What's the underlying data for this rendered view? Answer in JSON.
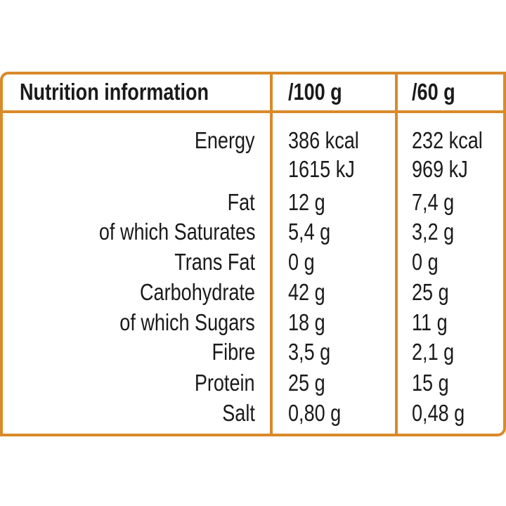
{
  "header": {
    "title": "Nutrition information",
    "col1": "/100 g",
    "col2": "/60 g"
  },
  "border_color": "#d98a2a",
  "rows": [
    {
      "label": "Energy",
      "per100": "386 kcal",
      "per60": "232 kcal"
    },
    {
      "label": "",
      "per100": "1615 kJ",
      "per60": "969 kJ"
    },
    {
      "label": "Fat",
      "per100": "12 g",
      "per60": "7,4 g"
    },
    {
      "label": "of which Saturates",
      "per100": "5,4 g",
      "per60": "3,2 g"
    },
    {
      "label": "Trans Fat",
      "per100": "0 g",
      "per60": "0 g"
    },
    {
      "label": "Carbohydrate",
      "per100": "42 g",
      "per60": "25 g"
    },
    {
      "label": "of which Sugars",
      "per100": "18 g",
      "per60": "11 g"
    },
    {
      "label": "Fibre",
      "per100": "3,5 g",
      "per60": "2,1 g"
    },
    {
      "label": "Protein",
      "per100": "25 g",
      "per60": "15 g"
    },
    {
      "label": "Salt",
      "per100": "0,80 g",
      "per60": "0,48 g"
    }
  ]
}
